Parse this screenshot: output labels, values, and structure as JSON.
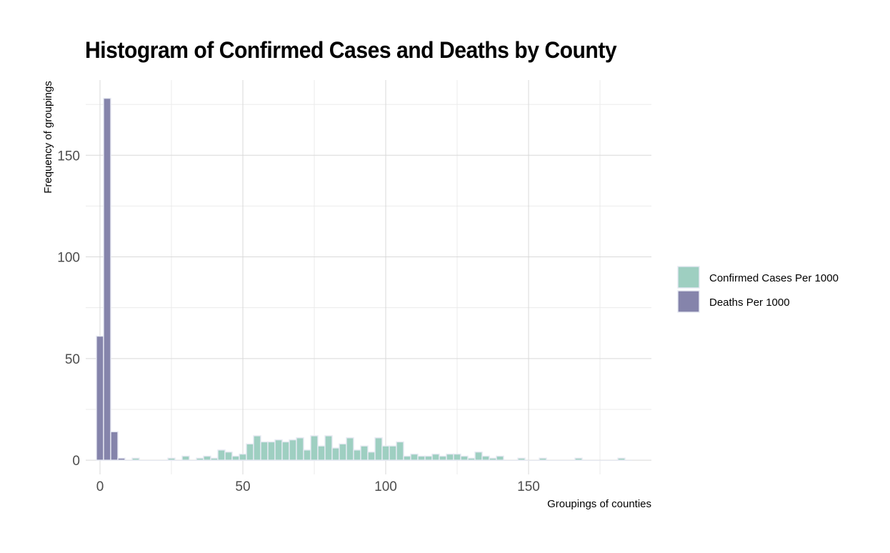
{
  "chart_data": {
    "type": "bar",
    "title": "Histogram of Confirmed Cases and Deaths by County",
    "xlabel": "Groupings of counties",
    "ylabel": "Frequency of groupings",
    "xlim": [
      -5,
      193
    ],
    "ylim": [
      -7,
      187
    ],
    "xticks": [
      0,
      50,
      100,
      150
    ],
    "yticks": [
      0,
      50,
      100,
      150
    ],
    "grid": true,
    "legend_position": "right",
    "bin_width": 2.5,
    "series": [
      {
        "name": "Confirmed Cases Per 1000",
        "color": "#9ecfc1",
        "bins": [
          [
            12.5,
            1
          ],
          [
            25,
            1
          ],
          [
            30,
            2
          ],
          [
            35,
            1
          ],
          [
            37.5,
            2
          ],
          [
            40,
            1
          ],
          [
            42.5,
            5
          ],
          [
            45,
            4
          ],
          [
            47.5,
            2
          ],
          [
            50,
            3
          ],
          [
            52.5,
            8
          ],
          [
            55,
            12
          ],
          [
            57.5,
            9
          ],
          [
            60,
            9
          ],
          [
            62.5,
            10
          ],
          [
            65,
            9
          ],
          [
            67.5,
            10
          ],
          [
            70,
            11
          ],
          [
            72.5,
            5
          ],
          [
            75,
            12
          ],
          [
            77.5,
            7
          ],
          [
            80,
            12
          ],
          [
            82.5,
            6
          ],
          [
            85,
            8
          ],
          [
            87.5,
            11
          ],
          [
            90,
            5
          ],
          [
            92.5,
            7
          ],
          [
            95,
            4
          ],
          [
            97.5,
            11
          ],
          [
            100,
            7
          ],
          [
            102.5,
            7
          ],
          [
            105,
            9
          ],
          [
            107.5,
            2
          ],
          [
            110,
            3
          ],
          [
            112.5,
            2
          ],
          [
            115,
            2
          ],
          [
            117.5,
            3
          ],
          [
            120,
            2
          ],
          [
            122.5,
            3
          ],
          [
            125,
            3
          ],
          [
            127.5,
            2
          ],
          [
            130,
            1
          ],
          [
            132.5,
            4
          ],
          [
            135,
            2
          ],
          [
            137.5,
            1
          ],
          [
            140,
            2
          ],
          [
            147.5,
            1
          ],
          [
            155,
            1
          ],
          [
            167.5,
            1
          ],
          [
            182.5,
            1
          ]
        ]
      },
      {
        "name": "Deaths Per 1000",
        "color": "#8584ab",
        "bins": [
          [
            0,
            61
          ],
          [
            2.5,
            178
          ],
          [
            5,
            14
          ],
          [
            7.5,
            1
          ]
        ]
      }
    ]
  }
}
